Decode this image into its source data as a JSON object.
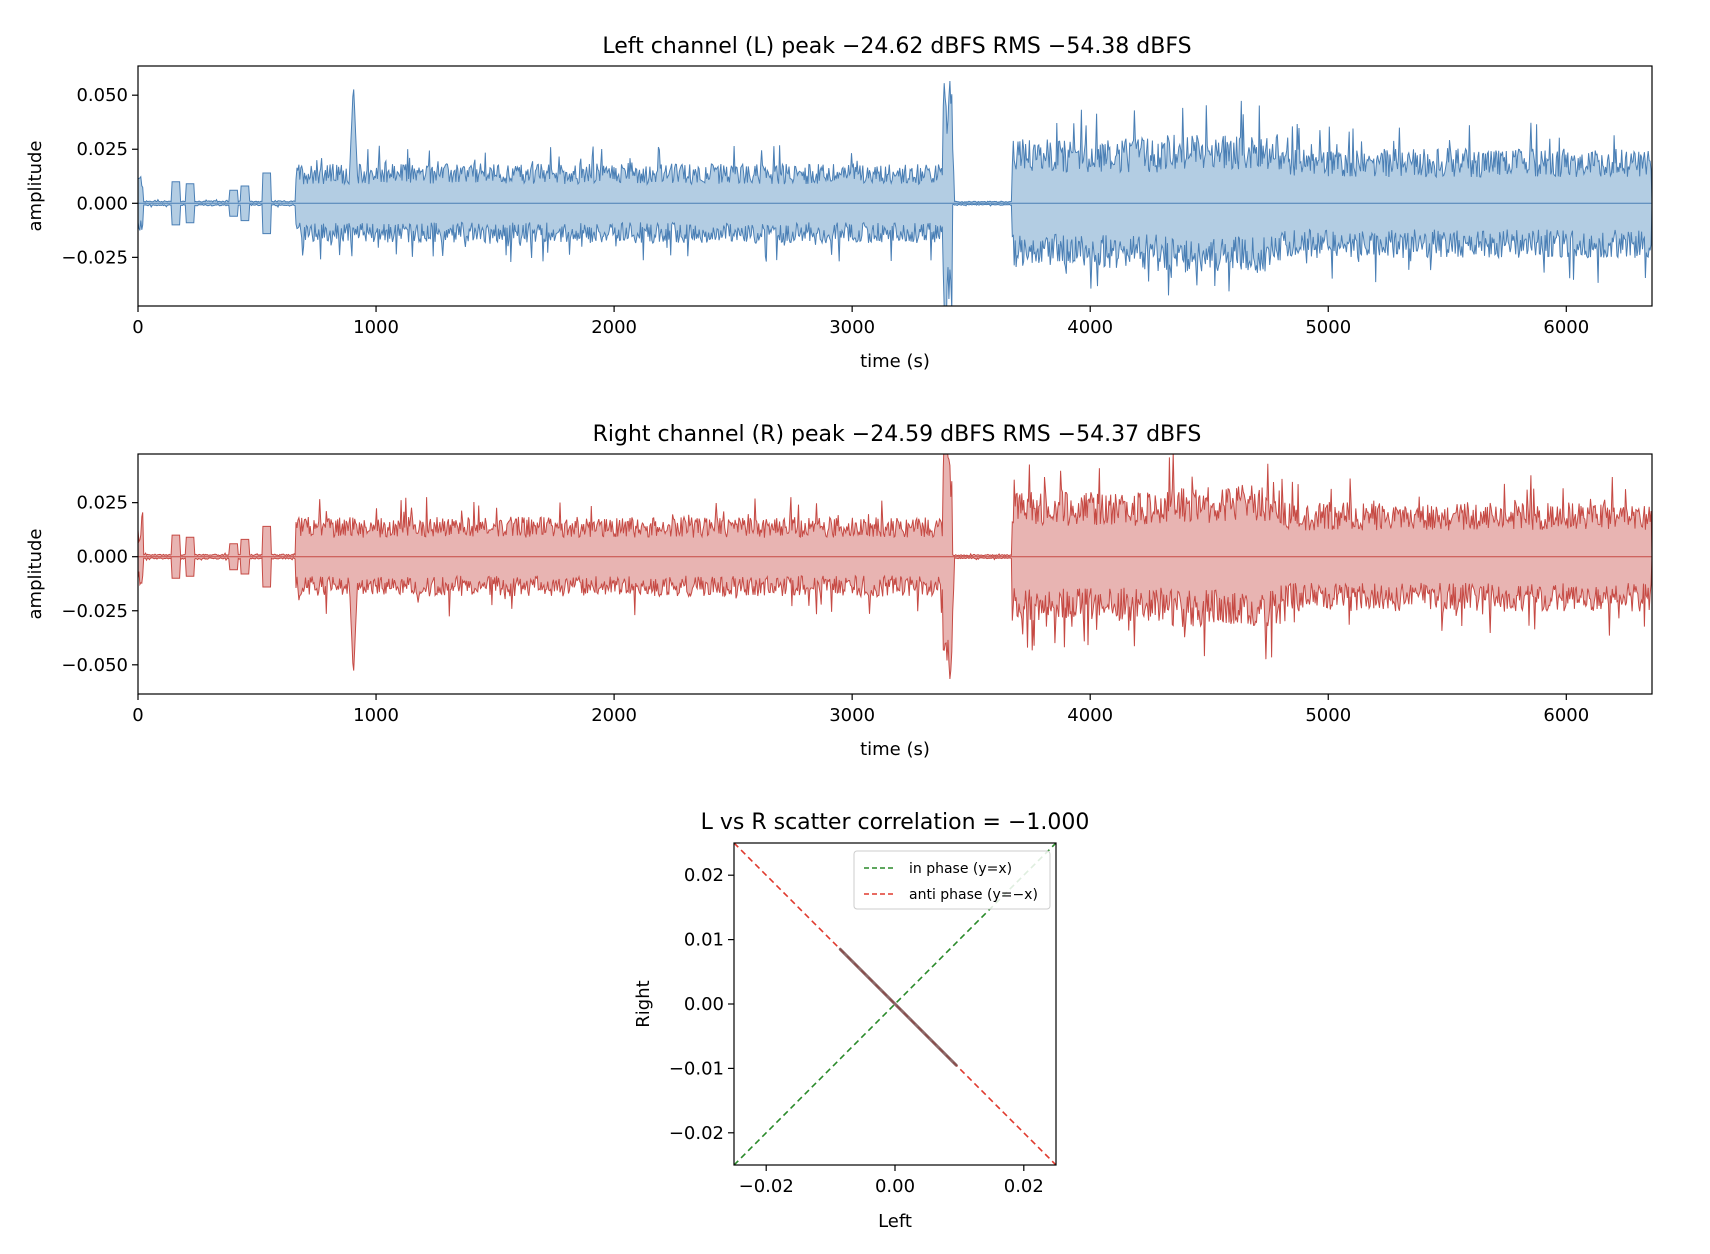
{
  "colors": {
    "left_line": "#4a7fb5",
    "left_fill": "#b3cde3",
    "right_line": "#c64a44",
    "right_fill": "#e8b4b2",
    "in_phase": "#2a8a2a",
    "anti_phase": "#e03a2e",
    "scatter": "#7a5050"
  },
  "chart_data": [
    {
      "type": "area",
      "name": "left_waveform",
      "title": "Left channel (L)   peak −24.62 dBFS   RMS −54.38 dBFS",
      "xlabel": "time (s)",
      "ylabel": "amplitude",
      "xlim": [
        0,
        6360
      ],
      "ylim": [
        -0.0475,
        0.0635
      ],
      "xticks": [
        0,
        1000,
        2000,
        3000,
        4000,
        5000,
        6000
      ],
      "xtick_labels": [
        "0",
        "1000",
        "2000",
        "3000",
        "4000",
        "5000",
        "6000"
      ],
      "yticks": [
        0.05,
        0.025,
        0.0,
        -0.025
      ],
      "ytick_labels": [
        "0.050",
        "0.025",
        "0.000",
        "−0.025"
      ],
      "envelope_segments": [
        {
          "t_start": 0,
          "t_end": 20,
          "amp": 0.012
        },
        {
          "t_start": 20,
          "t_end": 660,
          "amp": 0.001
        },
        {
          "t_start": 660,
          "t_end": 3380,
          "amp": 0.016
        },
        {
          "t_start": 3380,
          "t_end": 3420,
          "amp": 0.05
        },
        {
          "t_start": 3420,
          "t_end": 3670,
          "amp": 0.0008
        },
        {
          "t_start": 3670,
          "t_end": 4300,
          "amp": 0.026
        },
        {
          "t_start": 4300,
          "t_end": 4800,
          "amp": 0.028
        },
        {
          "t_start": 4800,
          "t_end": 6360,
          "amp": 0.022
        }
      ],
      "spikes": [
        {
          "t": 160,
          "amp": 0.01
        },
        {
          "t": 220,
          "amp": 0.009
        },
        {
          "t": 400,
          "amp": 0.006
        },
        {
          "t": 450,
          "amp": 0.008
        },
        {
          "t": 540,
          "amp": 0.014
        },
        {
          "t": 905,
          "amp": 0.056
        },
        {
          "t": 3410,
          "amp": 0.058
        }
      ],
      "series": [
        {
          "name": "",
          "color_key": "left_line"
        }
      ]
    },
    {
      "type": "area",
      "name": "right_waveform",
      "title": "Right channel (R)   peak −24.59 dBFS   RMS −54.37 dBFS",
      "xlabel": "time (s)",
      "ylabel": "amplitude",
      "xlim": [
        0,
        6360
      ],
      "ylim": [
        -0.0635,
        0.0475
      ],
      "xticks": [
        0,
        1000,
        2000,
        3000,
        4000,
        5000,
        6000
      ],
      "xtick_labels": [
        "0",
        "1000",
        "2000",
        "3000",
        "4000",
        "5000",
        "6000"
      ],
      "yticks": [
        0.025,
        0.0,
        -0.025,
        -0.05
      ],
      "ytick_labels": [
        "0.025",
        "0.000",
        "−0.025",
        "−0.050"
      ],
      "envelope_segments": [
        {
          "t_start": 0,
          "t_end": 20,
          "amp": 0.012
        },
        {
          "t_start": 20,
          "t_end": 660,
          "amp": 0.001
        },
        {
          "t_start": 660,
          "t_end": 3380,
          "amp": 0.016
        },
        {
          "t_start": 3380,
          "t_end": 3420,
          "amp": 0.05
        },
        {
          "t_start": 3420,
          "t_end": 3670,
          "amp": 0.0008
        },
        {
          "t_start": 3670,
          "t_end": 4300,
          "amp": 0.026
        },
        {
          "t_start": 4300,
          "t_end": 4800,
          "amp": 0.028
        },
        {
          "t_start": 4800,
          "t_end": 6360,
          "amp": 0.022
        }
      ],
      "spikes": [
        {
          "t": 160,
          "amp": 0.01
        },
        {
          "t": 220,
          "amp": 0.009
        },
        {
          "t": 400,
          "amp": 0.006
        },
        {
          "t": 450,
          "amp": 0.008
        },
        {
          "t": 540,
          "amp": 0.014
        },
        {
          "t": 905,
          "amp": -0.056
        },
        {
          "t": 3410,
          "amp": -0.058
        }
      ],
      "series": [
        {
          "name": "",
          "color_key": "right_line"
        }
      ]
    },
    {
      "type": "scatter",
      "name": "lr_scatter",
      "title": "L vs R scatter   correlation = −1.000",
      "xlabel": "Left",
      "ylabel": "Right",
      "xlim": [
        -0.025,
        0.025
      ],
      "ylim": [
        -0.025,
        0.025
      ],
      "xticks": [
        -0.02,
        0.0,
        0.02
      ],
      "xtick_labels": [
        "−0.02",
        "0.00",
        "0.02"
      ],
      "yticks": [
        0.02,
        0.01,
        0.0,
        -0.01,
        -0.02
      ],
      "ytick_labels": [
        "0.02",
        "0.01",
        "0.00",
        "−0.01",
        "−0.02"
      ],
      "points_segment": {
        "x_from": -0.0085,
        "x_to": 0.0095,
        "slope": -1
      },
      "reference_lines": [
        {
          "name": "in phase (y=x)",
          "slope": 1,
          "color_key": "in_phase",
          "dash": true
        },
        {
          "name": "anti phase (y=−x)",
          "slope": -1,
          "color_key": "anti_phase",
          "dash": true
        }
      ],
      "legend_position": "upper-right"
    }
  ]
}
